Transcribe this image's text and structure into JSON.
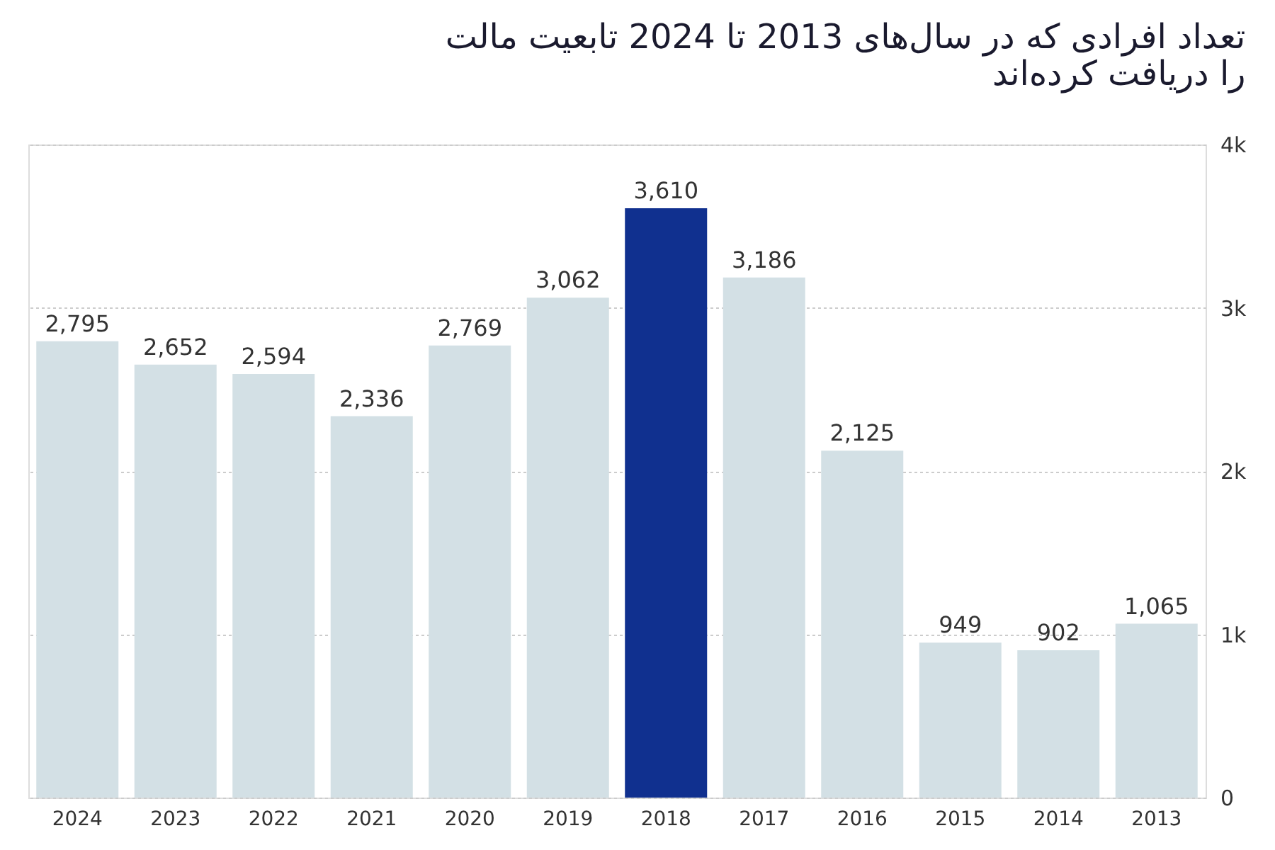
{
  "chart_data": {
    "type": "bar",
    "title": "تعداد افرادی که در سال‌های 2013 تا 2024 تابعیت مالت را دریافت کرده‌اند",
    "categories": [
      "2024",
      "2023",
      "2022",
      "2021",
      "2020",
      "2019",
      "2018",
      "2017",
      "2016",
      "2015",
      "2014",
      "2013"
    ],
    "values": [
      2795,
      2652,
      2594,
      2336,
      2769,
      3062,
      3610,
      3186,
      2125,
      949,
      902,
      1065
    ],
    "colors": [
      "#d3e0e5",
      "#d3e0e5",
      "#d3e0e5",
      "#d3e0e5",
      "#d3e0e5",
      "#d3e0e5",
      "#10308f",
      "#d3e0e5",
      "#d3e0e5",
      "#d3e0e5",
      "#d3e0e5",
      "#d3e0e5"
    ],
    "ylim": [
      0,
      4000
    ],
    "yticks": [
      0,
      {
        "value": 1000,
        "label": "1k"
      },
      {
        "value": 2000,
        "label": "2k"
      },
      {
        "value": 3000,
        "label": "3k"
      },
      {
        "value": 4000,
        "label": "4k"
      }
    ],
    "value_labels": [
      "2,795",
      "2,652",
      "2,594",
      "2,336",
      "2,769",
      "3,062",
      "3,610",
      "3,186",
      "2,125",
      "949",
      "902",
      "1,065"
    ],
    "grid": "y"
  }
}
